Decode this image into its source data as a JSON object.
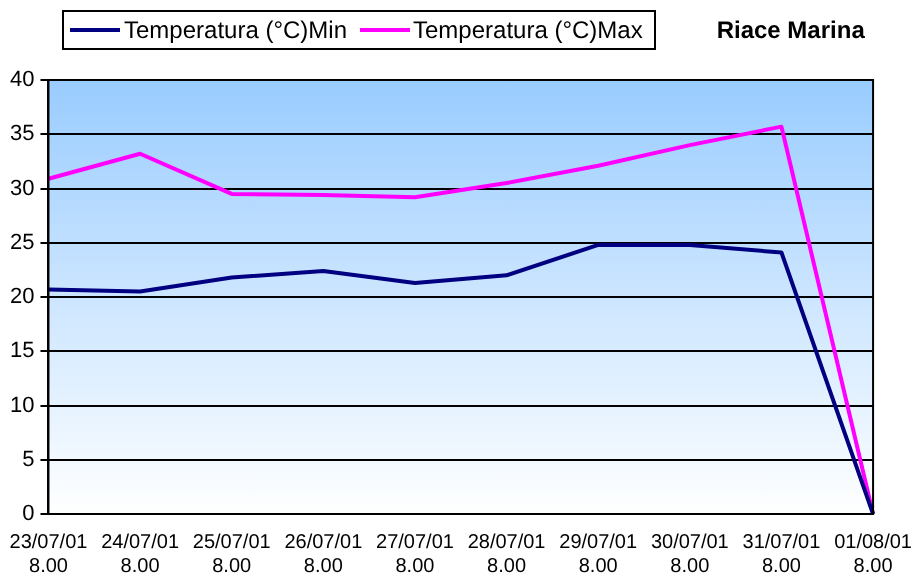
{
  "chart_data": {
    "type": "line",
    "title": "Riace Marina",
    "categories": [
      "23/07/01 8.00",
      "24/07/01 8.00",
      "25/07/01 8.00",
      "26/07/01 8.00",
      "27/07/01 8.00",
      "28/07/01 8.00",
      "29/07/01 8.00",
      "30/07/01 8.00",
      "31/07/01 8.00",
      "01/08/01 8.00"
    ],
    "series": [
      {
        "name": "Temperatura (°C)Min",
        "color": "#000080",
        "values": [
          20.7,
          20.5,
          21.8,
          22.4,
          21.3,
          22.0,
          24.8,
          24.8,
          24.1,
          0
        ]
      },
      {
        "name": "Temperatura (°C)Max",
        "color": "#ff00ff",
        "values": [
          30.9,
          33.2,
          29.5,
          29.4,
          29.2,
          30.5,
          32.1,
          34.0,
          35.7,
          0
        ]
      }
    ],
    "ylim": [
      0,
      40
    ],
    "yticks": [
      0,
      5,
      10,
      15,
      20,
      25,
      30,
      35,
      40
    ],
    "grid": "y",
    "legend": "top left",
    "marker": "none",
    "line_style": "solid"
  }
}
